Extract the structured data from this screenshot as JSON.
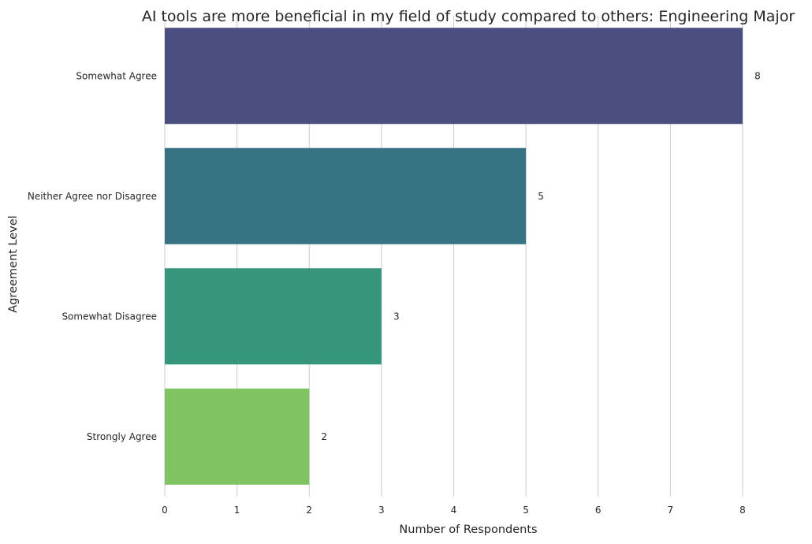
{
  "chart_data": {
    "type": "bar",
    "orientation": "horizontal",
    "title": "AI tools are more beneficial in my field of study compared to others: Engineering Major",
    "xlabel": "Number of Respondents",
    "ylabel": "Agreement Level",
    "categories": [
      "Somewhat Agree",
      "Neither Agree nor Disagree",
      "Somewhat Disagree",
      "Strongly Agree"
    ],
    "values": [
      8,
      5,
      3,
      2
    ],
    "data_labels": [
      "8",
      "5",
      "3",
      "2"
    ],
    "colors": [
      "#4b4f80",
      "#377382",
      "#35967b",
      "#80c362"
    ],
    "xlim": [
      0,
      8
    ],
    "xticks": [
      0,
      1,
      2,
      3,
      4,
      5,
      6,
      7,
      8
    ],
    "xtick_labels": [
      "0",
      "1",
      "2",
      "3",
      "4",
      "5",
      "6",
      "7",
      "8"
    ],
    "grid": "vertical",
    "legend": "none"
  }
}
